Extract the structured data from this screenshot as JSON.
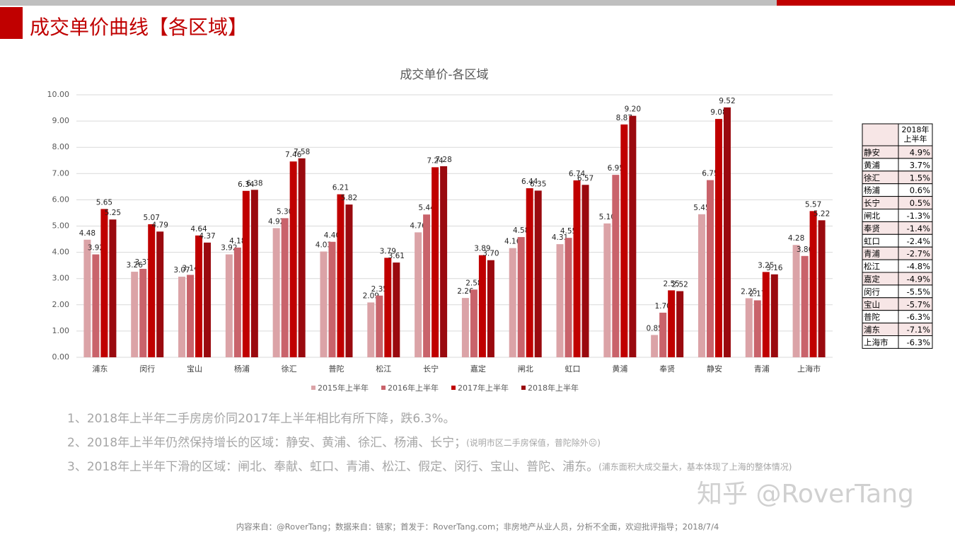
{
  "slide_title": "成交单价曲线【各区域】",
  "chart_data": {
    "type": "bar",
    "title": "成交单价-各区域",
    "categories": [
      "浦东",
      "闵行",
      "宝山",
      "杨浦",
      "徐汇",
      "普陀",
      "松江",
      "长宁",
      "嘉定",
      "闸北",
      "虹口",
      "黄浦",
      "奉贤",
      "静安",
      "青浦",
      "上海市"
    ],
    "series": [
      {
        "name": "2015年上半年",
        "color": "#dba3a7",
        "values": [
          4.48,
          3.26,
          3.07,
          3.92,
          4.92,
          4.03,
          2.09,
          4.76,
          2.26,
          4.16,
          4.31,
          5.1,
          0.85,
          5.45,
          2.25,
          4.28
        ],
        "value_labels": [
          "4.48",
          "3.26",
          "3.07",
          "3.92",
          "4.92",
          "4.03",
          "2.09",
          "4.76",
          "2.26",
          "4.16",
          "4.31",
          "5.10",
          "0.85",
          "5.45",
          "2.25",
          "4.28"
        ]
      },
      {
        "name": "2016年上半年",
        "color": "#c9636b",
        "values": [
          3.92,
          3.37,
          3.14,
          4.18,
          5.3,
          4.4,
          2.35,
          5.44,
          2.58,
          4.58,
          4.55,
          6.95,
          1.7,
          6.75,
          2.17,
          3.86
        ],
        "value_labels": [
          "3.92",
          "3.37",
          "3.14",
          "4.18",
          "5.30",
          "4.40",
          "2.35",
          "5.44",
          "2.58",
          "4.58",
          "4.55",
          "6.95",
          "1.70",
          "6.75",
          "2.17",
          "3.86"
        ]
      },
      {
        "name": "2017年上半年",
        "color": "#c00000",
        "values": [
          5.65,
          5.07,
          4.64,
          6.34,
          7.46,
          6.21,
          3.79,
          7.24,
          3.89,
          6.44,
          6.74,
          8.87,
          2.55,
          9.08,
          3.25,
          5.57
        ],
        "value_labels": [
          "5.65",
          "5.07",
          "4.64",
          "6.34",
          "7.46",
          "6.21",
          "3.79",
          "7.24",
          "3.89",
          "6.44",
          "6.74",
          "8.87",
          "2.55",
          "9.08",
          "3.25",
          "5.57"
        ]
      },
      {
        "name": "2018年上半年",
        "color": "#9a0a0f",
        "values": [
          5.25,
          4.79,
          4.37,
          6.38,
          7.58,
          5.82,
          3.61,
          7.28,
          3.7,
          6.35,
          6.57,
          9.2,
          2.52,
          9.52,
          3.16,
          5.22
        ],
        "value_labels": [
          "5.25",
          "4.79",
          "4.37",
          "6.38",
          "7.58",
          "5.82",
          "3.61",
          "7.28",
          "3.70",
          "6.35",
          "6.57",
          "9.20",
          "2.52",
          "9.52",
          "3.16",
          "5.22"
        ]
      }
    ],
    "ylim": [
      0,
      10
    ],
    "yticks": [
      {
        "value": 0,
        "label": "0.00"
      },
      {
        "value": 1,
        "label": "1.00"
      },
      {
        "value": 2,
        "label": "2.00"
      },
      {
        "value": 3,
        "label": "3.00"
      },
      {
        "value": 4,
        "label": "4.00"
      },
      {
        "value": 5,
        "label": "5.00"
      },
      {
        "value": 6,
        "label": "6.00"
      },
      {
        "value": 7,
        "label": "7.00"
      },
      {
        "value": 8,
        "label": "8.00"
      },
      {
        "value": 9,
        "label": "9.00"
      },
      {
        "value": 10,
        "label": "10.00"
      }
    ],
    "grid": true,
    "legend": "bottom"
  },
  "table": {
    "header": [
      "2018年",
      "上半年"
    ],
    "rows": [
      [
        "静安",
        "4.9%"
      ],
      [
        "黄浦",
        "3.7%"
      ],
      [
        "徐汇",
        "1.5%"
      ],
      [
        "杨浦",
        "0.6%"
      ],
      [
        "长宁",
        "0.5%"
      ],
      [
        "闸北",
        "-1.3%"
      ],
      [
        "奉贤",
        "-1.4%"
      ],
      [
        "虹口",
        "-2.4%"
      ],
      [
        "青浦",
        "-2.7%"
      ],
      [
        "松江",
        "-4.8%"
      ],
      [
        "嘉定",
        "-4.9%"
      ],
      [
        "闵行",
        "-5.5%"
      ],
      [
        "宝山",
        "-5.7%"
      ],
      [
        "普陀",
        "-6.3%"
      ],
      [
        "浦东",
        "-7.1%"
      ],
      [
        "上海市",
        "-6.3%"
      ]
    ]
  },
  "notes": [
    {
      "text": "1、2018年上半年二手房房价同2017年上半年相比有所下降，跌6.3%。"
    },
    {
      "text": "2、2018年上半年仍然保持增长的区域：静安、黄浦、徐汇、杨浦、长宁；",
      "aside": "(说明市区二手房保值，普陀除外☹)"
    },
    {
      "text": "3、2018年上半年下滑的区域：闸北、奉献、虹口、青浦、松江、假定、闵行、宝山、普陀、浦东。",
      "aside": "(浦东面积大成交量大，基本体现了上海的整体情况)"
    }
  ],
  "watermark": "知乎 @RoverTang",
  "footer": "内容来自：@RoverTang；数据来自：链家；首发于：RoverTang.com；非房地产从业人员，分析不全面，欢迎批评指导；2018/7/4"
}
